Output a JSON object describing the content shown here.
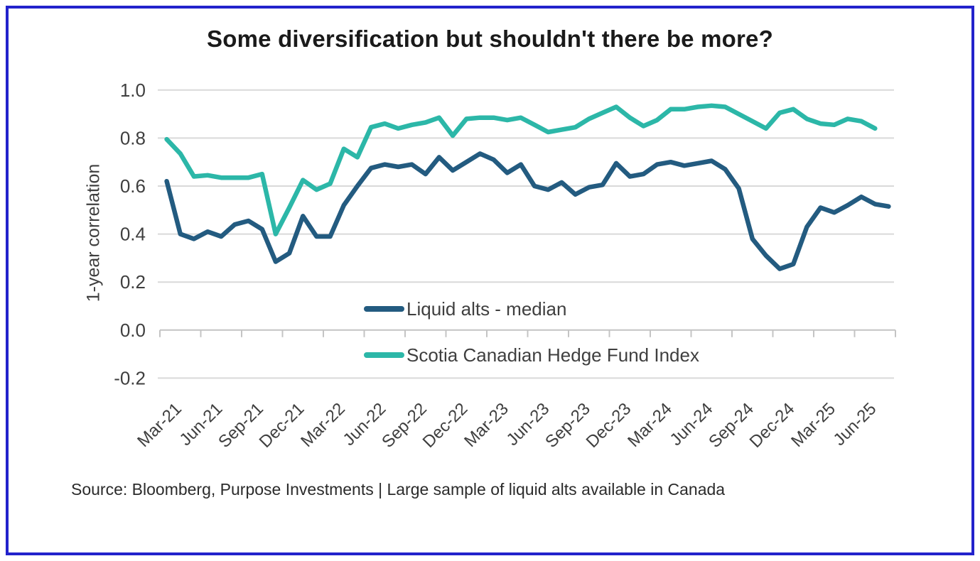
{
  "title": "Some diversification but shouldn't there be more?",
  "source_note": "Source: Bloomberg, Purpose Investments | Large sample of liquid alts available in Canada",
  "frame": {
    "border_color": "#2222cc"
  },
  "y_axis": {
    "label": "1-year correlation",
    "ticks": [
      {
        "label": "1.0",
        "value": 1.0
      },
      {
        "label": "0.8",
        "value": 0.8
      },
      {
        "label": "0.6",
        "value": 0.6
      },
      {
        "label": "0.4",
        "value": 0.4
      },
      {
        "label": "0.2",
        "value": 0.2
      },
      {
        "label": "0.0",
        "value": 0.0
      },
      {
        "label": "-0.2",
        "value": -0.2
      }
    ]
  },
  "x_axis": {
    "labels": [
      "Mar-21",
      "Jun-21",
      "Sep-21",
      "Dec-21",
      "Mar-22",
      "Jun-22",
      "Sep-22",
      "Dec-22",
      "Mar-23",
      "Jun-23",
      "Sep-23",
      "Dec-23",
      "Mar-24",
      "Jun-24",
      "Sep-24",
      "Dec-24",
      "Mar-25",
      "Jun-25"
    ],
    "months_per_label": 3
  },
  "legend": [
    {
      "label": "Liquid alts - median",
      "color": "#235b80"
    },
    {
      "label": "Scotia Canadian Hedge Fund Index",
      "color": "#2cb7a8"
    }
  ],
  "style": {
    "grid_color": "#d9d9d9",
    "axis_color": "#c4c4c4",
    "tick_text_color": "#3f3f3f",
    "line_width": 6.5
  },
  "chart_data": {
    "type": "line",
    "title": "Some diversification but shouldn't there be more?",
    "xlabel": "",
    "ylabel": "1-year correlation",
    "ylim": [
      -0.2,
      1.0
    ],
    "grid": true,
    "legend_position": "inside-center-bottom",
    "x": [
      "Mar-21",
      "Apr-21",
      "May-21",
      "Jun-21",
      "Jul-21",
      "Aug-21",
      "Sep-21",
      "Oct-21",
      "Nov-21",
      "Dec-21",
      "Jan-22",
      "Feb-22",
      "Mar-22",
      "Apr-22",
      "May-22",
      "Jun-22",
      "Jul-22",
      "Aug-22",
      "Sep-22",
      "Oct-22",
      "Nov-22",
      "Dec-22",
      "Jan-23",
      "Feb-23",
      "Mar-23",
      "Apr-23",
      "May-23",
      "Jun-23",
      "Jul-23",
      "Aug-23",
      "Sep-23",
      "Oct-23",
      "Nov-23",
      "Dec-23",
      "Jan-24",
      "Feb-24",
      "Mar-24",
      "Apr-24",
      "May-24",
      "Jun-24",
      "Jul-24",
      "Aug-24",
      "Sep-24",
      "Oct-24",
      "Nov-24",
      "Dec-24",
      "Jan-25",
      "Feb-25",
      "Mar-25",
      "Apr-25",
      "May-25",
      "Jun-25",
      "Jul-25",
      "Aug-25"
    ],
    "series": [
      {
        "name": "Liquid alts - median",
        "color": "#235b80",
        "values": [
          0.62,
          0.4,
          0.38,
          0.41,
          0.39,
          0.44,
          0.455,
          0.42,
          0.285,
          0.32,
          0.475,
          0.39,
          0.39,
          0.52,
          0.6,
          0.675,
          0.69,
          0.68,
          0.69,
          0.65,
          0.72,
          0.665,
          0.7,
          0.735,
          0.71,
          0.655,
          0.69,
          0.6,
          0.585,
          0.615,
          0.565,
          0.595,
          0.605,
          0.695,
          0.64,
          0.65,
          0.69,
          0.7,
          0.685,
          0.695,
          0.705,
          0.67,
          0.59,
          0.38,
          0.31,
          0.255,
          0.275,
          0.43,
          0.51,
          0.49,
          0.52,
          0.555,
          0.525,
          0.515
        ]
      },
      {
        "name": "Scotia Canadian Hedge Fund Index",
        "color": "#2cb7a8",
        "values": [
          0.795,
          0.735,
          0.64,
          0.645,
          0.635,
          0.635,
          0.635,
          0.65,
          0.4,
          0.51,
          0.625,
          0.585,
          0.61,
          0.755,
          0.72,
          0.845,
          0.86,
          0.84,
          0.855,
          0.865,
          0.885,
          0.81,
          0.88,
          0.885,
          0.885,
          0.875,
          0.885,
          0.855,
          0.825,
          0.835,
          0.845,
          0.88,
          0.905,
          0.93,
          0.885,
          0.85,
          0.875,
          0.92,
          0.92,
          0.93,
          0.935,
          0.93,
          0.9,
          0.87,
          0.84,
          0.905,
          0.92,
          0.88,
          0.86,
          0.855,
          0.88,
          0.87,
          0.84,
          null
        ]
      }
    ]
  }
}
